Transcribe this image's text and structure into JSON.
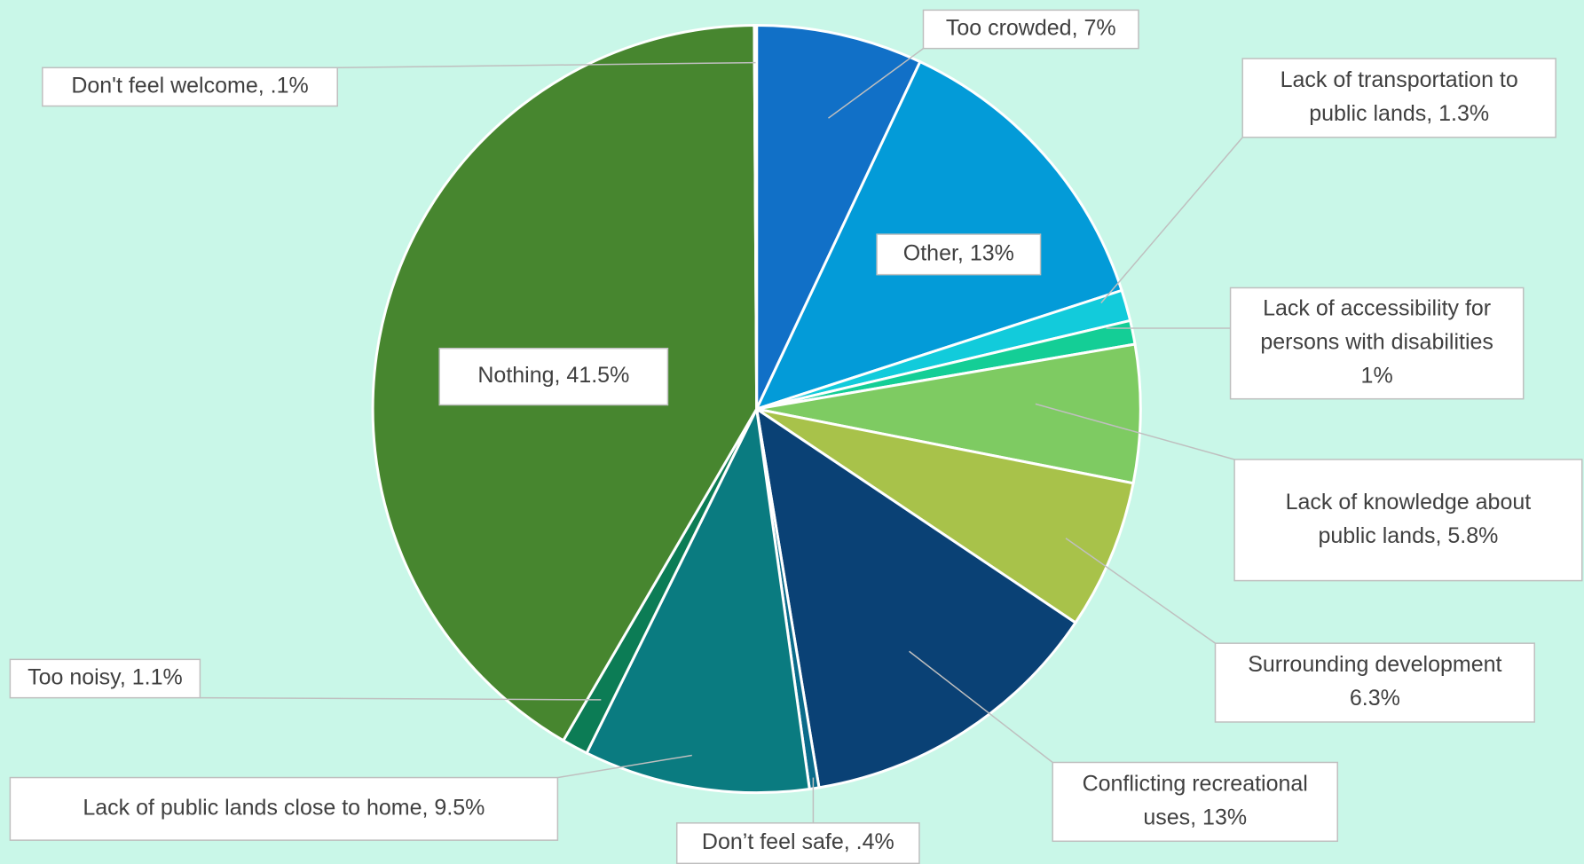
{
  "chart_data": {
    "type": "pie",
    "labels": [
      [
        "Too crowded, 7%"
      ],
      [
        "Other, 13%"
      ],
      [
        "Lack of transportation to",
        "public lands, 1.3%"
      ],
      [
        "Lack of accessibility for",
        "persons with disabilities",
        "1%"
      ],
      [
        "Lack of knowledge about",
        "public lands, 5.8%"
      ],
      [
        "Surrounding development",
        "6.3%"
      ],
      [
        "Conflicting recreational",
        "uses, 13%"
      ],
      [
        "Don’t feel safe, .4%"
      ],
      [
        "Lack of public lands close to home, 9.5%"
      ],
      [
        "Too noisy, 1.1%"
      ],
      [
        "Nothing, 41.5%"
      ],
      [
        "Don't feel welcome, .1%"
      ]
    ],
    "values": [
      7,
      13,
      1.3,
      1,
      5.8,
      6.3,
      13,
      0.4,
      9.5,
      1.1,
      41.5,
      0.1
    ],
    "colors": [
      "#1170c7",
      "#039bd8",
      "#12cbdb",
      "#14ce96",
      "#7ecb62",
      "#a8c24a",
      "#0a4175",
      "#0b6b8a",
      "#0a7b80",
      "#0c7c55",
      "#47862f",
      "#5aa3d6"
    ]
  }
}
